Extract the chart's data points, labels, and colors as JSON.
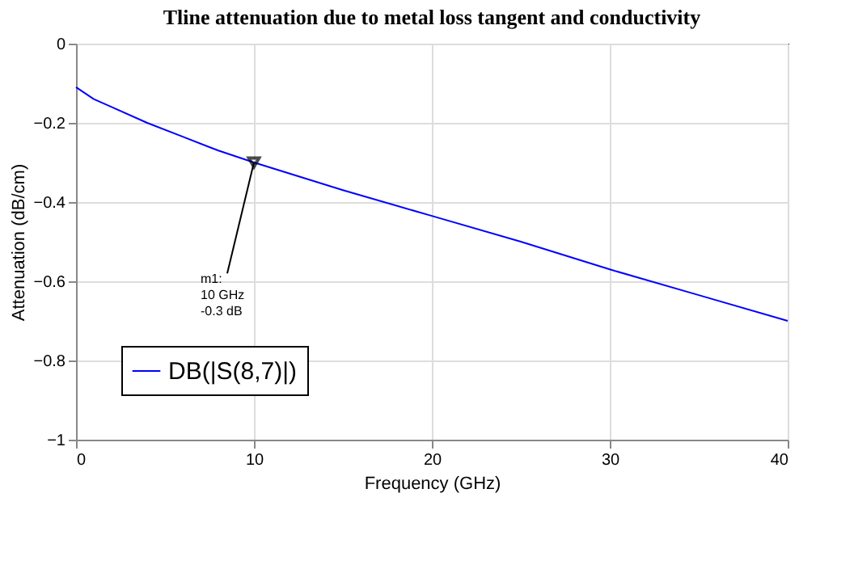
{
  "chart_data": {
    "type": "line",
    "title": "Tline attenuation due to metal loss tangent and conductivity",
    "xlabel": "Frequency (GHz)",
    "ylabel": "Attenuation (dB/cm)",
    "x": [
      0,
      1,
      2,
      4,
      6,
      8,
      10,
      15,
      20,
      25,
      30,
      35,
      40
    ],
    "series": [
      {
        "name": "DB(|S(8,7)|)",
        "color": "#0000ff",
        "values": [
          -0.11,
          -0.14,
          -0.16,
          -0.2,
          -0.235,
          -0.27,
          -0.3,
          -0.37,
          -0.435,
          -0.5,
          -0.57,
          -0.635,
          -0.7
        ]
      }
    ],
    "xlim": [
      0,
      40
    ],
    "xticks": [
      0,
      10,
      20,
      30,
      40
    ],
    "ylim": [
      -1,
      0
    ],
    "yticks": [
      0,
      -0.2,
      -0.4,
      -0.6,
      -0.8,
      -1
    ],
    "grid": true,
    "legend": "bottom left",
    "marker": "none",
    "line_style": "solid",
    "annotations": [
      {
        "text": "m1:\n10 GHz\n-0.3 dB",
        "x": 10,
        "y": -0.3
      }
    ]
  }
}
